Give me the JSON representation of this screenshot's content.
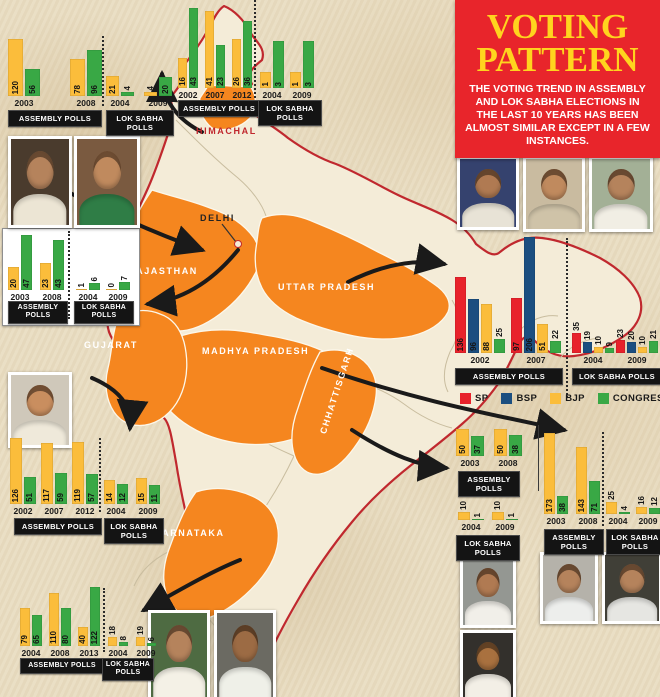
{
  "title_box": {
    "title": "VOTING PATTERN",
    "body": "THE VOTING TREND IN ASSEMBLY AND LOK SABHA ELECTIONS IN THE LAST 10 YEARS HAS BEEN ALMOST SIMILAR EXCEPT IN A FEW INSTANCES."
  },
  "party_colors": {
    "SP": "#e8222b",
    "BSP": "#1b4e80",
    "BJP": "#fbbd3b",
    "CONGRESS": "#39a845"
  },
  "legend": [
    {
      "party": "SP",
      "label": "SP"
    },
    {
      "party": "BSP",
      "label": "BSP"
    },
    {
      "party": "BJP",
      "label": "BJP"
    },
    {
      "party": "CONGRESS",
      "label": "CONGRESS"
    }
  ],
  "map_labels": [
    "HIMACHAL",
    "DELHI",
    "RAJASTHAN",
    "GUJARAT",
    "UTTAR PRADESH",
    "MADHYA PRADESH",
    "CHHATTISGARH",
    "KARNATAKA"
  ],
  "chart_data": [
    {
      "id": "rajasthan-assembly",
      "region": "Rajasthan",
      "type": "bar",
      "poll_label": "ASSEMBLY POLLS",
      "categories": [
        "2003",
        "2008"
      ],
      "ymax": 130,
      "series": [
        {
          "party": "BJP",
          "values": [
            120,
            78
          ]
        },
        {
          "party": "CONGRESS",
          "values": [
            56,
            96
          ]
        }
      ]
    },
    {
      "id": "rajasthan-loksabha",
      "region": "Rajasthan",
      "type": "bar",
      "poll_label": "LOK SABHA POLLS",
      "categories": [
        "2004",
        "2009"
      ],
      "ymax": 65,
      "series": [
        {
          "party": "BJP",
          "values": [
            21,
            4
          ]
        },
        {
          "party": "CONGRESS",
          "values": [
            4,
            20
          ]
        }
      ]
    },
    {
      "id": "delhi-assembly",
      "region": "Delhi",
      "type": "bar",
      "poll_label": "ASSEMBLY POLLS",
      "categories": [
        "2003",
        "2008"
      ],
      "ymax": 50,
      "series": [
        {
          "party": "BJP",
          "values": [
            20,
            23
          ]
        },
        {
          "party": "CONGRESS",
          "values": [
            47,
            43
          ]
        }
      ]
    },
    {
      "id": "delhi-loksabha",
      "region": "Delhi",
      "type": "bar",
      "poll_label": "LOK SABHA POLLS",
      "categories": [
        "2004",
        "2009"
      ],
      "ymax": 50,
      "labels_outside": true,
      "series": [
        {
          "party": "BJP",
          "values": [
            1,
            0
          ]
        },
        {
          "party": "CONGRESS",
          "values": [
            6,
            7
          ]
        }
      ]
    },
    {
      "id": "himachal-assembly",
      "region": "Himachal",
      "type": "bar",
      "poll_label": "ASSEMBLY POLLS",
      "categories": [
        "2002",
        "2007",
        "2012"
      ],
      "ymax": 46,
      "series": [
        {
          "party": "BJP",
          "values": [
            16,
            41,
            26
          ]
        },
        {
          "party": "CONGRESS",
          "values": [
            43,
            23,
            36
          ]
        }
      ]
    },
    {
      "id": "himachal-loksabha",
      "region": "Himachal",
      "type": "bar",
      "poll_label": "LOK SABHA POLLS",
      "categories": [
        "2004",
        "2009"
      ],
      "ymax": 5.5,
      "series": [
        {
          "party": "BJP",
          "values": [
            1,
            1
          ]
        },
        {
          "party": "CONGRESS",
          "values": [
            3,
            3
          ]
        }
      ]
    },
    {
      "id": "up-assembly",
      "region": "Uttar Pradesh",
      "type": "bar",
      "poll_label": "ASSEMBLY POLLS",
      "categories": [
        "2002",
        "2007"
      ],
      "ymax": 210,
      "series": [
        {
          "party": "SP",
          "values": [
            136,
            97
          ]
        },
        {
          "party": "BSP",
          "values": [
            96,
            206
          ]
        },
        {
          "party": "BJP",
          "values": [
            88,
            51
          ]
        },
        {
          "party": "CONGRESS",
          "values": [
            25,
            22
          ]
        }
      ]
    },
    {
      "id": "up-loksabha",
      "region": "Uttar Pradesh",
      "type": "bar",
      "poll_label": "LOK SABHA POLLS",
      "categories": [
        "2004",
        "2009"
      ],
      "ymax": 210,
      "labels_outside": true,
      "series": [
        {
          "party": "SP",
          "values": [
            35,
            23
          ]
        },
        {
          "party": "BSP",
          "values": [
            19,
            20
          ]
        },
        {
          "party": "BJP",
          "values": [
            10,
            10
          ]
        },
        {
          "party": "CONGRESS",
          "values": [
            9,
            21
          ]
        }
      ]
    },
    {
      "id": "gujarat-assembly",
      "region": "Gujarat",
      "type": "bar",
      "poll_label": "ASSEMBLY POLLS",
      "categories": [
        "2002",
        "2007",
        "2012"
      ],
      "ymax": 130,
      "series": [
        {
          "party": "BJP",
          "values": [
            126,
            117,
            119
          ]
        },
        {
          "party": "CONGRESS",
          "values": [
            51,
            59,
            57
          ]
        }
      ]
    },
    {
      "id": "gujarat-loksabha",
      "region": "Gujarat",
      "type": "bar",
      "poll_label": "LOK SABHA POLLS",
      "categories": [
        "2004",
        "2009"
      ],
      "ymax": 40,
      "series": [
        {
          "party": "BJP",
          "values": [
            14,
            15
          ]
        },
        {
          "party": "CONGRESS",
          "values": [
            12,
            11
          ]
        }
      ]
    },
    {
      "id": "karnataka-assembly",
      "region": "Karnataka",
      "type": "bar",
      "poll_label": "ASSEMBLY POLLS",
      "categories": [
        "2004",
        "2008",
        "2013"
      ],
      "ymax": 125,
      "series": [
        {
          "party": "BJP",
          "values": [
            79,
            110,
            40
          ]
        },
        {
          "party": "CONGRESS",
          "values": [
            65,
            80,
            122
          ]
        }
      ]
    },
    {
      "id": "karnataka-loksabha",
      "region": "Karnataka",
      "type": "bar",
      "poll_label": "LOK SABHA POLLS",
      "categories": [
        "2004",
        "2009"
      ],
      "ymax": 125,
      "labels_outside": true,
      "series": [
        {
          "party": "BJP",
          "values": [
            18,
            19
          ]
        },
        {
          "party": "CONGRESS",
          "values": [
            8,
            6
          ]
        }
      ]
    },
    {
      "id": "chhattisgarh-assembly",
      "region": "Chhattisgarh",
      "type": "bar",
      "poll_label": "ASSEMBLY POLLS",
      "categories": [
        "2003",
        "2008"
      ],
      "ymax": 55,
      "series": [
        {
          "party": "BJP",
          "values": [
            50,
            50
          ]
        },
        {
          "party": "CONGRESS",
          "values": [
            37,
            38
          ]
        }
      ]
    },
    {
      "id": "chhattisgarh-loksabha",
      "region": "Chhattisgarh",
      "type": "bar",
      "poll_label": "LOK SABHA POLLS",
      "categories": [
        "2004",
        "2009"
      ],
      "ymax": 25,
      "labels_outside": true,
      "series": [
        {
          "party": "BJP",
          "values": [
            10,
            10
          ]
        },
        {
          "party": "CONGRESS",
          "values": [
            1,
            1
          ]
        }
      ]
    },
    {
      "id": "mp-assembly",
      "region": "Madhya Pradesh",
      "type": "bar",
      "poll_label": "ASSEMBLY POLLS",
      "categories": [
        "2003",
        "2008"
      ],
      "ymax": 180,
      "series": [
        {
          "party": "BJP",
          "values": [
            173,
            143
          ]
        },
        {
          "party": "CONGRESS",
          "values": [
            38,
            71
          ]
        }
      ]
    },
    {
      "id": "mp-loksabha",
      "region": "Madhya Pradesh",
      "type": "bar",
      "poll_label": "LOK SABHA POLLS",
      "categories": [
        "2004",
        "2009"
      ],
      "ymax": 180,
      "labels_outside": true,
      "series": [
        {
          "party": "BJP",
          "values": [
            25,
            16
          ]
        },
        {
          "party": "CONGRESS",
          "values": [
            4,
            12
          ]
        }
      ]
    }
  ]
}
